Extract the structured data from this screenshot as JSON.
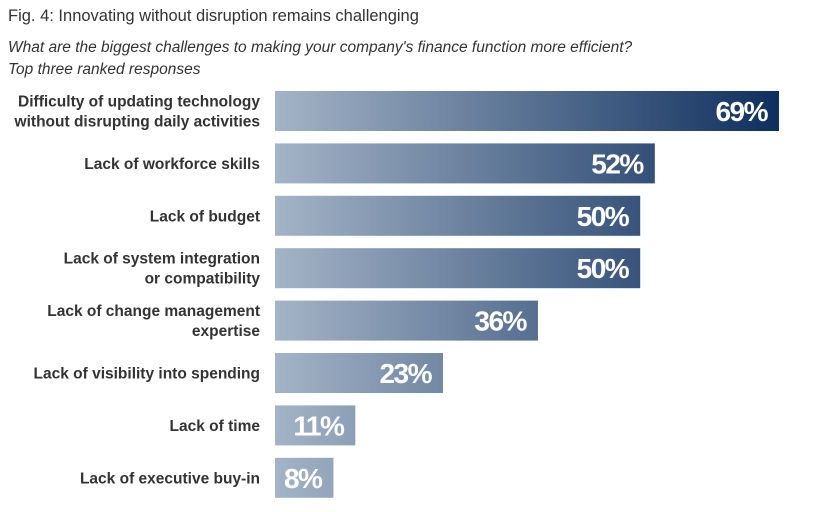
{
  "header": {
    "title": "Fig. 4: Innovating without disruption remains challenging",
    "subtitle_line1": "What are the biggest challenges to making your company's finance function more efficient?",
    "subtitle_line2": "Top three ranked responses"
  },
  "colors": {
    "bar_start": "#a4b4c7",
    "bar_end": "#0e2f5e",
    "label_text": "#333333",
    "value_text": "#ffffff"
  },
  "chart_data": {
    "type": "bar",
    "orientation": "horizontal",
    "title": "Fig. 4: Innovating without disruption remains challenging",
    "subtitle": "What are the biggest challenges to making your company's finance function more efficient? Top three ranked responses",
    "categories": [
      [
        "Difficulty of updating technology",
        "without disrupting daily activities"
      ],
      [
        "Lack of workforce skills"
      ],
      [
        "Lack of budget"
      ],
      [
        "Lack of system integration",
        "or compatibility"
      ],
      [
        "Lack of change management",
        "expertise"
      ],
      [
        "Lack of visibility into spending"
      ],
      [
        "Lack of time"
      ],
      [
        "Lack of executive buy-in"
      ]
    ],
    "values": [
      69,
      52,
      50,
      50,
      36,
      23,
      11,
      8
    ],
    "value_labels": [
      "69%",
      "52%",
      "50%",
      "50%",
      "36%",
      "23%",
      "11%",
      "8%"
    ],
    "unit": "%",
    "xlim": [
      0,
      69
    ],
    "grid": false,
    "legend": "none"
  }
}
